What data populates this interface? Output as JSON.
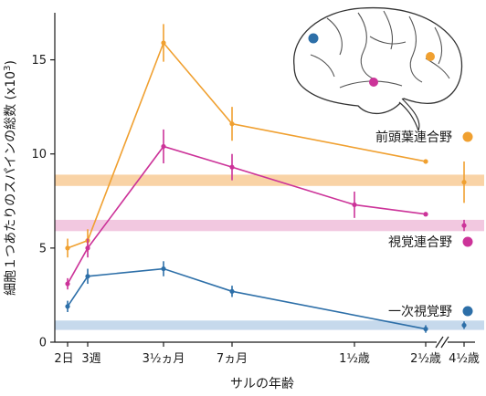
{
  "chart_data": {
    "type": "line",
    "ylabel": "細胞１つあたりのスパインの総数 (x10",
    "ylabel_sup": "3",
    "ylabel_close": ")",
    "xlabel": "サルの年齢",
    "ylim": [
      0,
      17.5
    ],
    "y_ticks": [
      "0",
      "5",
      "10",
      "15"
    ],
    "x_tick_labels": [
      "2日",
      "3週",
      "3½ヵ月",
      "7ヵ月",
      "1½歳",
      "2½歳",
      "4½歳"
    ],
    "axis_break": "between 2½歳 and 4½歳",
    "grid": false,
    "legend_position": "right",
    "series": [
      {
        "name": "前頭葉連合野",
        "color": "#f0a030",
        "band_color": "#f9d3a6",
        "points": [
          {
            "x": "2日",
            "y": 5.0,
            "err": 0.5
          },
          {
            "x": "3週",
            "y": 5.4,
            "err": 0.6
          },
          {
            "x": "3½ヵ月",
            "y": 15.9,
            "err": 1.0
          },
          {
            "x": "7ヵ月",
            "y": 11.6,
            "err": 0.9
          },
          {
            "x": "2½歳",
            "y": 9.6,
            "err": 0
          }
        ],
        "adult": {
          "x": "4½歳",
          "y": 8.5,
          "err": 1.1
        },
        "band": [
          8.3,
          8.9
        ]
      },
      {
        "name": "視覚連合野",
        "color": "#cc3399",
        "band_color": "#f2c8e0",
        "points": [
          {
            "x": "2日",
            "y": 3.1,
            "err": 0.3
          },
          {
            "x": "3週",
            "y": 5.0,
            "err": 0.5
          },
          {
            "x": "3½ヵ月",
            "y": 10.4,
            "err": 0.9
          },
          {
            "x": "7ヵ月",
            "y": 9.3,
            "err": 0.7
          },
          {
            "x": "1½歳",
            "y": 7.3,
            "err": 0.7
          },
          {
            "x": "2½歳",
            "y": 6.8,
            "err": 0
          }
        ],
        "adult": {
          "x": "4½歳",
          "y": 6.2,
          "err": 0.3
        },
        "band": [
          5.9,
          6.5
        ]
      },
      {
        "name": "一次視覚野",
        "color": "#2d6fa8",
        "band_color": "#c6d9ec",
        "points": [
          {
            "x": "2日",
            "y": 1.9,
            "err": 0.3
          },
          {
            "x": "3週",
            "y": 3.5,
            "err": 0.4
          },
          {
            "x": "3½ヵ月",
            "y": 3.9,
            "err": 0.4
          },
          {
            "x": "7ヵ月",
            "y": 2.7,
            "err": 0.3
          },
          {
            "x": "2½歳",
            "y": 0.7,
            "err": 0.2
          }
        ],
        "adult": {
          "x": "4½歳",
          "y": 0.9,
          "err": 0.2
        },
        "band": [
          0.65,
          1.15
        ]
      }
    ]
  }
}
